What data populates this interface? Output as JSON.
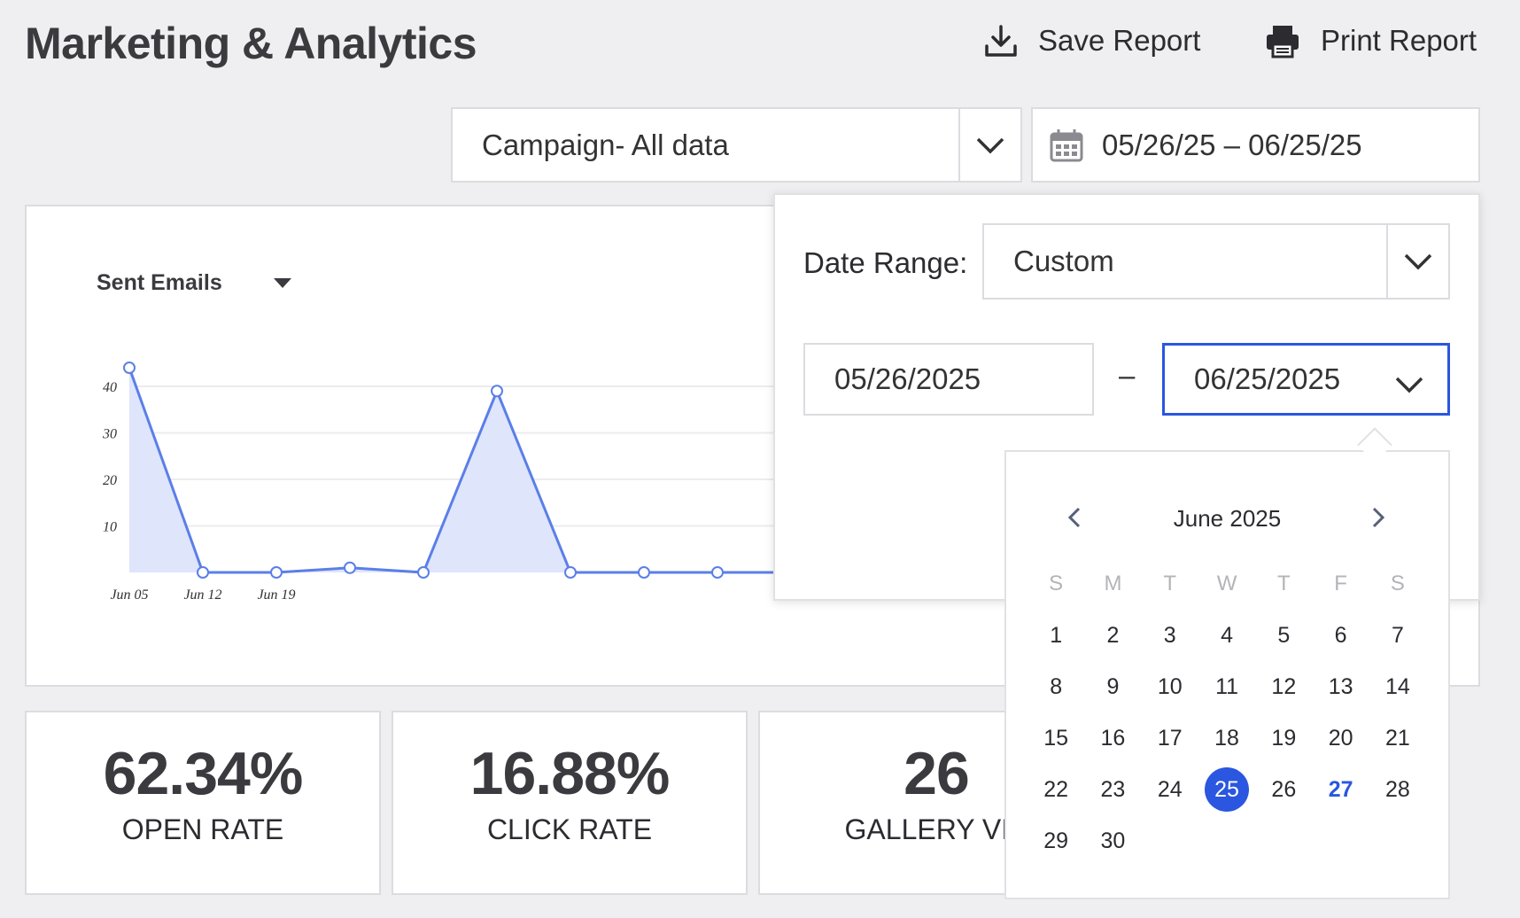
{
  "header": {
    "title": "Marketing & Analytics",
    "save_label": "Save Report",
    "print_label": "Print Report"
  },
  "filters": {
    "campaign_value": "Campaign- All data",
    "date_range_display": "05/26/25 – 06/25/25"
  },
  "chart_data": {
    "type": "area",
    "title": "Sent Emails",
    "x": [
      "Jun 05",
      "",
      "",
      "",
      "",
      "",
      "",
      "",
      "",
      ""
    ],
    "x_tick_labels": [
      "Jun 05",
      "Jun 12",
      "Jun 19"
    ],
    "series": [
      {
        "values": [
          44,
          0,
          0,
          1,
          0,
          39,
          0,
          0,
          0,
          0
        ]
      }
    ],
    "y_ticks": [
      10,
      20,
      30,
      40
    ],
    "ylim": [
      0,
      45
    ],
    "grid": true,
    "color": "#5b7fe8",
    "fill": "#dfe5fb"
  },
  "stats": [
    {
      "value": "62.34%",
      "label": "OPEN RATE"
    },
    {
      "value": "16.88%",
      "label": "CLICK RATE"
    },
    {
      "value": "26",
      "label": "GALLERY VIS"
    }
  ],
  "popover": {
    "range_label": "Date Range:",
    "range_value": "Custom",
    "start_date": "05/26/2025",
    "separator": "–",
    "end_date": "06/25/2025"
  },
  "calendar": {
    "month_label": "June 2025",
    "weekdays": [
      "S",
      "M",
      "T",
      "W",
      "T",
      "F",
      "S"
    ],
    "weeks": [
      [
        "1",
        "2",
        "3",
        "4",
        "5",
        "6",
        "7"
      ],
      [
        "8",
        "9",
        "10",
        "11",
        "12",
        "13",
        "14"
      ],
      [
        "15",
        "16",
        "17",
        "18",
        "19",
        "20",
        "21"
      ],
      [
        "22",
        "23",
        "24",
        "25",
        "26",
        "27",
        "28"
      ],
      [
        "29",
        "30",
        "",
        "",
        "",
        "",
        ""
      ]
    ],
    "selected": "25",
    "today": "27"
  },
  "colors": {
    "accent": "#2a56e0",
    "line": "#5b7fe8"
  }
}
